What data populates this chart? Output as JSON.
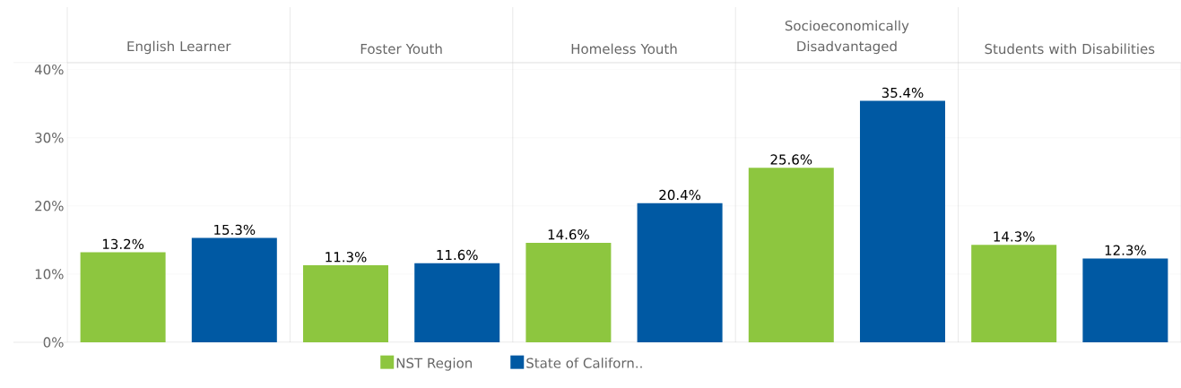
{
  "chart_data": {
    "type": "bar",
    "categories": [
      "English Learner",
      "Foster Youth",
      "Homeless Youth",
      "Socioeconomically Disadvantaged",
      "Students with Disabilities"
    ],
    "series": [
      {
        "name": "NST  Region",
        "color": "#8dc63f",
        "values": [
          13.2,
          11.3,
          14.6,
          25.6,
          14.3
        ],
        "value_labels": [
          "13.2%",
          "11.3%",
          "14.6%",
          "25.6%",
          "14.3%"
        ]
      },
      {
        "name": "State of Californ..",
        "color": "#0059a3",
        "values": [
          15.3,
          11.6,
          20.4,
          35.4,
          12.3
        ],
        "value_labels": [
          "15.3%",
          "11.6%",
          "20.4%",
          "35.4%",
          "12.3%"
        ]
      }
    ],
    "ylim": [
      0,
      41
    ],
    "yticks": [
      {
        "value": 0,
        "label": "0%"
      },
      {
        "value": 10,
        "label": "10%"
      },
      {
        "value": 20,
        "label": "20%"
      },
      {
        "value": 30,
        "label": "30%"
      },
      {
        "value": 40,
        "label": "40%"
      }
    ],
    "grid": "y",
    "legend": "bottom"
  }
}
